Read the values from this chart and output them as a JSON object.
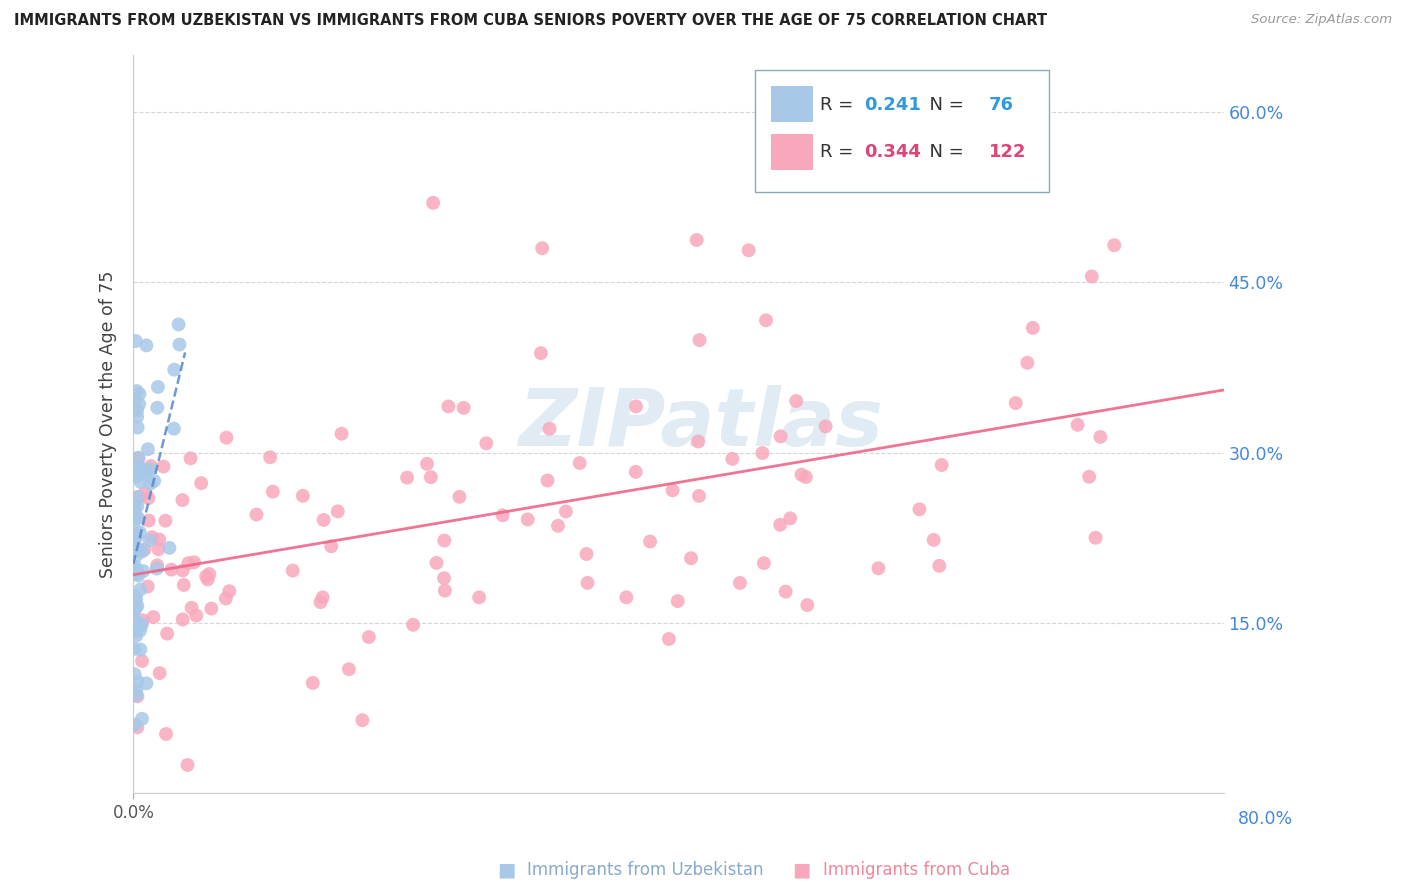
{
  "title": "IMMIGRANTS FROM UZBEKISTAN VS IMMIGRANTS FROM CUBA SENIORS POVERTY OVER THE AGE OF 75 CORRELATION CHART",
  "source": "Source: ZipAtlas.com",
  "ylabel": "Seniors Poverty Over the Age of 75",
  "xlim": [
    0.0,
    0.8
  ],
  "ylim": [
    0.0,
    0.65
  ],
  "uzbekistan_R": 0.241,
  "uzbekistan_N": 76,
  "cuba_R": 0.344,
  "cuba_N": 122,
  "watermark_text": "ZIPatlas",
  "uzbekistan_scatter_color": "#a8c8e8",
  "cuba_scatter_color": "#f8a8bc",
  "uzbekistan_line_color": "#5588cc",
  "cuba_line_color": "#ee6688",
  "right_label_color": "#4488dd",
  "title_color": "#222222",
  "source_color": "#999999",
  "grid_color": "#cccccc",
  "ylabel_color": "#444444",
  "legend_border": "#88aabb",
  "bottom_legend_uzb_color": "#88aacc",
  "bottom_legend_cuba_color": "#ee8899"
}
